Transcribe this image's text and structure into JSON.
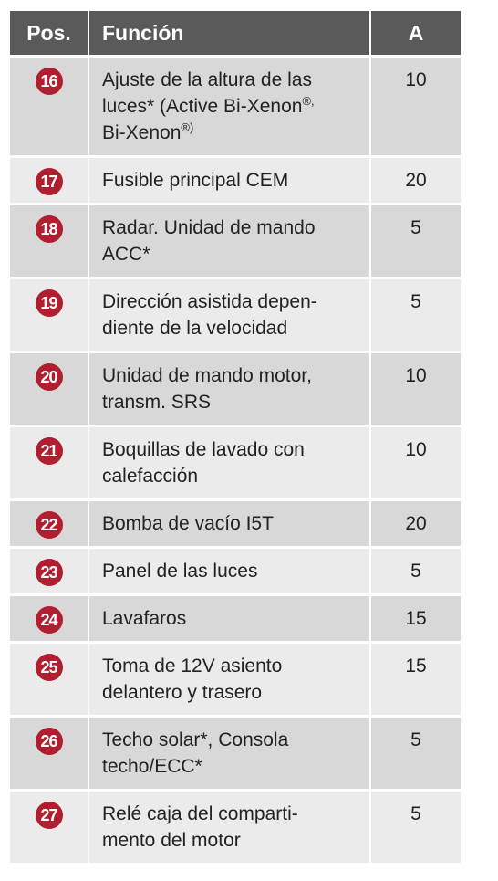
{
  "header": {
    "pos": "Pos.",
    "function": "Función",
    "amps": "A"
  },
  "rows": [
    {
      "pos": "16",
      "lines": [
        "Ajuste de la altura de las",
        "luces* (Active Bi-Xenon",
        "Bi-Xenon"
      ],
      "sups": [
        "",
        "®,",
        "®)"
      ],
      "amps": "10"
    },
    {
      "pos": "17",
      "lines": [
        "Fusible principal CEM"
      ],
      "amps": "20"
    },
    {
      "pos": "18",
      "lines": [
        "Radar. Unidad de mando",
        "ACC*"
      ],
      "amps": "5"
    },
    {
      "pos": "19",
      "lines": [
        "Dirección asistida depen-",
        "diente de la velocidad"
      ],
      "amps": "5"
    },
    {
      "pos": "20",
      "lines": [
        "Unidad de mando motor,",
        "transm. SRS"
      ],
      "amps": "10"
    },
    {
      "pos": "21",
      "lines": [
        "Boquillas de lavado con",
        "calefacción"
      ],
      "amps": "10"
    },
    {
      "pos": "22",
      "lines": [
        "Bomba de vacío I5T"
      ],
      "amps": "20"
    },
    {
      "pos": "23",
      "lines": [
        "Panel de las luces"
      ],
      "amps": "5"
    },
    {
      "pos": "24",
      "lines": [
        "Lavafaros"
      ],
      "amps": "15"
    },
    {
      "pos": "25",
      "lines": [
        "Toma de 12V asiento",
        "delantero y trasero"
      ],
      "amps": "15"
    },
    {
      "pos": "26",
      "lines": [
        "Techo solar*, Consola",
        "techo/ECC*"
      ],
      "amps": "5"
    },
    {
      "pos": "27",
      "lines": [
        "Relé caja del comparti-",
        "mento del motor"
      ],
      "amps": "5"
    }
  ],
  "colors": {
    "header_bg": "#5a5a5a",
    "row_light": "#ebebeb",
    "row_dark": "#d8d8d8",
    "badge": "#b01e30"
  }
}
